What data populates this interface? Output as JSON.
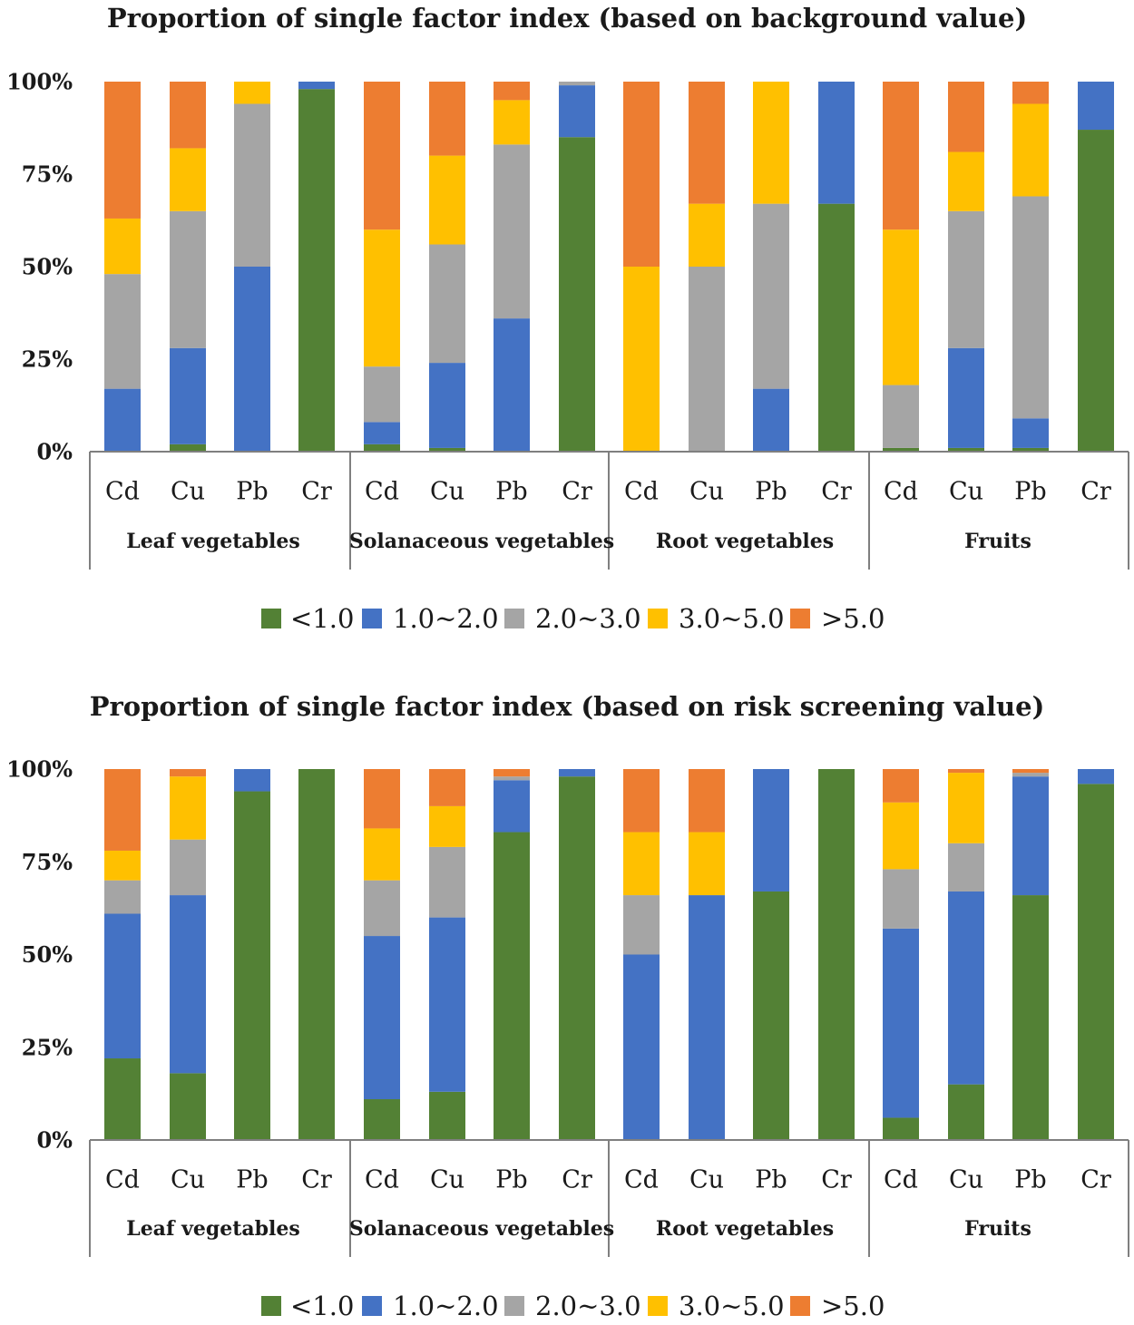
{
  "series_names": [
    "<1.0",
    "1.0~2.0",
    "2.0~3.0",
    "3.0~5.0",
    ">5.0"
  ],
  "series_colors": [
    "#538135",
    "#4472c4",
    "#a5a5a5",
    "#ffc000",
    "#ed7d31"
  ],
  "chart_data": [
    {
      "type": "bar",
      "stacked": true,
      "title": "Proportion of single factor  index (based on background value)",
      "ylim": [
        0,
        100
      ],
      "yticks": [
        "0%",
        "25%",
        "50%",
        "75%",
        "100%"
      ],
      "groups": [
        {
          "name": "Leaf  vegetables",
          "categories": [
            "Cd",
            "Cu",
            "Pb",
            "Cr"
          ]
        },
        {
          "name": "Solanaceous vegetables",
          "categories": [
            "Cd",
            "Cu",
            "Pb",
            "Cr"
          ]
        },
        {
          "name": "Root  vegetables",
          "categories": [
            "Cd",
            "Cu",
            "Pb",
            "Cr"
          ]
        },
        {
          "name": "Fruits",
          "categories": [
            "Cd",
            "Cu",
            "Pb",
            "Cr"
          ]
        }
      ],
      "series": [
        {
          "name": "<1.0",
          "values": [
            0,
            2,
            0,
            98,
            2,
            1,
            0,
            85,
            0,
            0,
            0,
            67,
            1,
            1,
            1,
            87
          ]
        },
        {
          "name": "1.0~2.0",
          "values": [
            17,
            26,
            50,
            2,
            6,
            23,
            36,
            14,
            0,
            0,
            17,
            33,
            0,
            27,
            8,
            13
          ]
        },
        {
          "name": "2.0~3.0",
          "values": [
            31,
            37,
            44,
            0,
            15,
            32,
            47,
            1,
            0,
            50,
            50,
            0,
            17,
            37,
            60,
            0
          ]
        },
        {
          "name": "3.0~5.0",
          "values": [
            15,
            17,
            6,
            0,
            37,
            24,
            12,
            0,
            50,
            17,
            33,
            0,
            42,
            16,
            25,
            0
          ]
        },
        {
          "name": ">5.0",
          "values": [
            37,
            18,
            0,
            0,
            40,
            20,
            5,
            0,
            50,
            33,
            0,
            0,
            40,
            19,
            6,
            0
          ]
        }
      ],
      "legend": "bottom"
    },
    {
      "type": "bar",
      "stacked": true,
      "title": "Proportion of single factor  index (based on risk screening value)",
      "ylim": [
        0,
        100
      ],
      "yticks": [
        "0%",
        "25%",
        "50%",
        "75%",
        "100%"
      ],
      "groups": [
        {
          "name": "Leaf  vegetables",
          "categories": [
            "Cd",
            "Cu",
            "Pb",
            "Cr"
          ]
        },
        {
          "name": "Solanaceous vegetables",
          "categories": [
            "Cd",
            "Cu",
            "Pb",
            "Cr"
          ]
        },
        {
          "name": "Root  vegetables",
          "categories": [
            "Cd",
            "Cu",
            "Pb",
            "Cr"
          ]
        },
        {
          "name": "Fruits",
          "categories": [
            "Cd",
            "Cu",
            "Pb",
            "Cr"
          ]
        }
      ],
      "series": [
        {
          "name": "<1.0",
          "values": [
            22,
            18,
            94,
            100,
            11,
            13,
            83,
            98,
            0,
            0,
            67,
            100,
            6,
            15,
            66,
            96
          ]
        },
        {
          "name": "1.0~2.0",
          "values": [
            39,
            48,
            6,
            0,
            44,
            47,
            14,
            2,
            50,
            66,
            33,
            0,
            51,
            52,
            32,
            4
          ]
        },
        {
          "name": "2.0~3.0",
          "values": [
            9,
            15,
            0,
            0,
            15,
            19,
            1,
            0,
            16,
            0,
            0,
            0,
            16,
            13,
            1,
            0
          ]
        },
        {
          "name": "3.0~5.0",
          "values": [
            8,
            17,
            0,
            0,
            14,
            11,
            0,
            0,
            17,
            17,
            0,
            0,
            18,
            19,
            0,
            0
          ]
        },
        {
          "name": ">5.0",
          "values": [
            22,
            2,
            0,
            0,
            16,
            10,
            2,
            0,
            17,
            17,
            0,
            0,
            9,
            1,
            1,
            0
          ]
        }
      ],
      "legend": "bottom"
    }
  ]
}
